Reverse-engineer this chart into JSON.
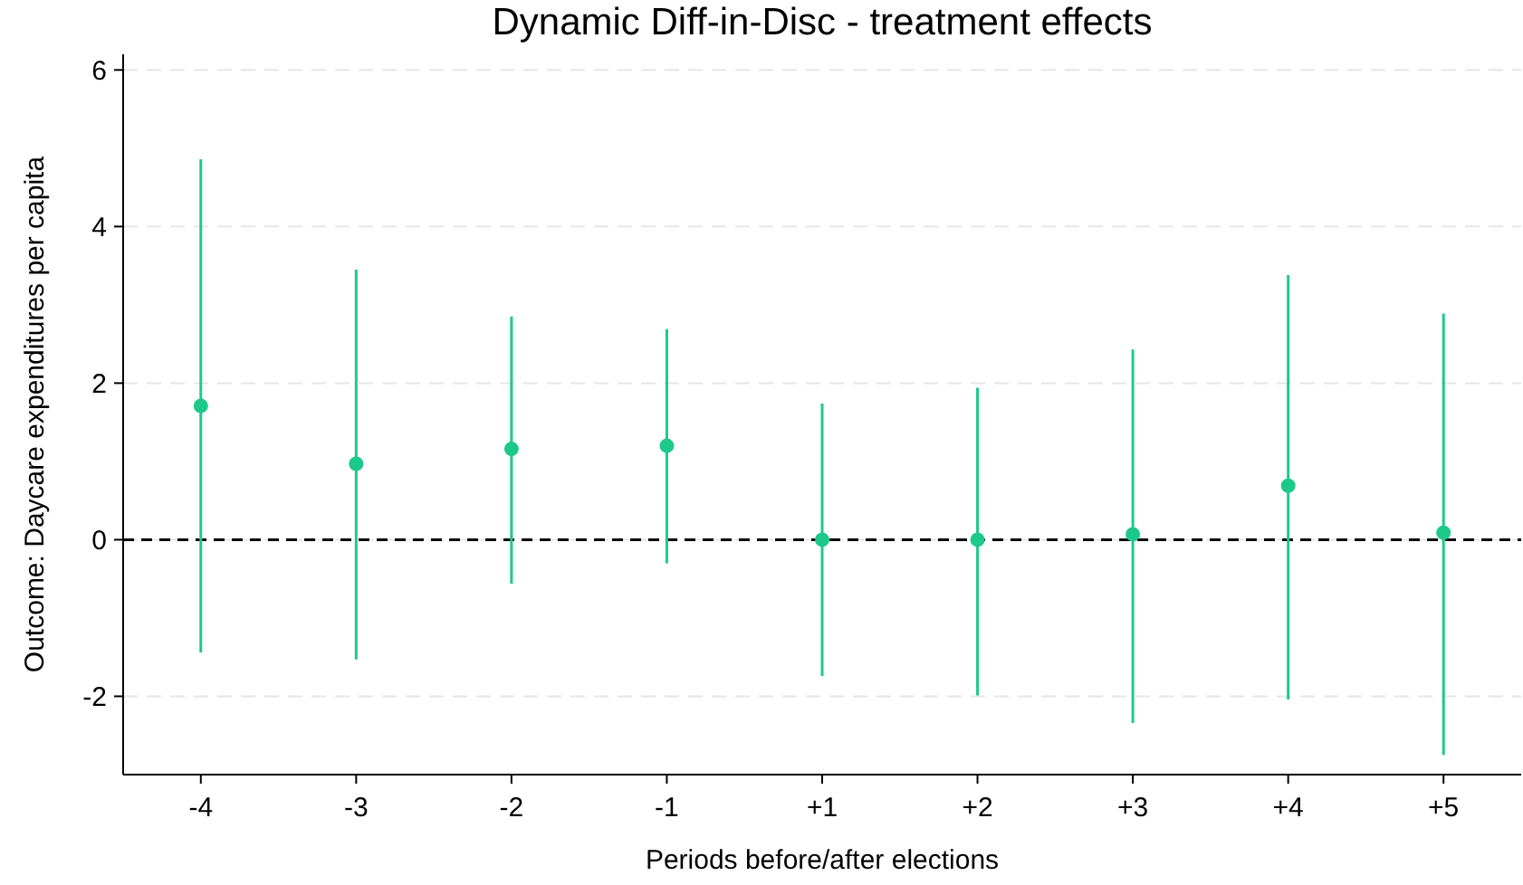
{
  "chart_data": {
    "type": "scatter",
    "title": "Dynamic Diff-in-Disc - treatment effects",
    "xlabel": "Periods before/after elections",
    "ylabel": "Outcome: Daycare expenditures per capita",
    "categories": [
      "-4",
      "-3",
      "-2",
      "-1",
      "+1",
      "+2",
      "+3",
      "+4",
      "+5"
    ],
    "series": [
      {
        "color": "#1dc98a",
        "values": [
          1.71,
          0.97,
          1.16,
          1.2,
          0.0,
          0.0,
          0.07,
          0.69,
          0.09
        ],
        "errors": [
          [
            -1.44,
            4.86
          ],
          [
            -1.53,
            3.45
          ],
          [
            -0.56,
            2.85
          ],
          [
            -0.3,
            2.69
          ],
          [
            -1.74,
            1.74
          ],
          [
            -1.99,
            1.94
          ],
          [
            -2.34,
            2.43
          ],
          [
            -2.04,
            3.38
          ],
          [
            -2.75,
            2.89
          ]
        ]
      }
    ],
    "ylim": [
      -3,
      6.2
    ],
    "yticks": [
      -2,
      0,
      2,
      4,
      6
    ],
    "grid": "y",
    "marker": "circle",
    "ref_lines": [
      {
        "axis": "y",
        "value": 0,
        "color": "#000000",
        "line_style": "dashed"
      }
    ]
  }
}
